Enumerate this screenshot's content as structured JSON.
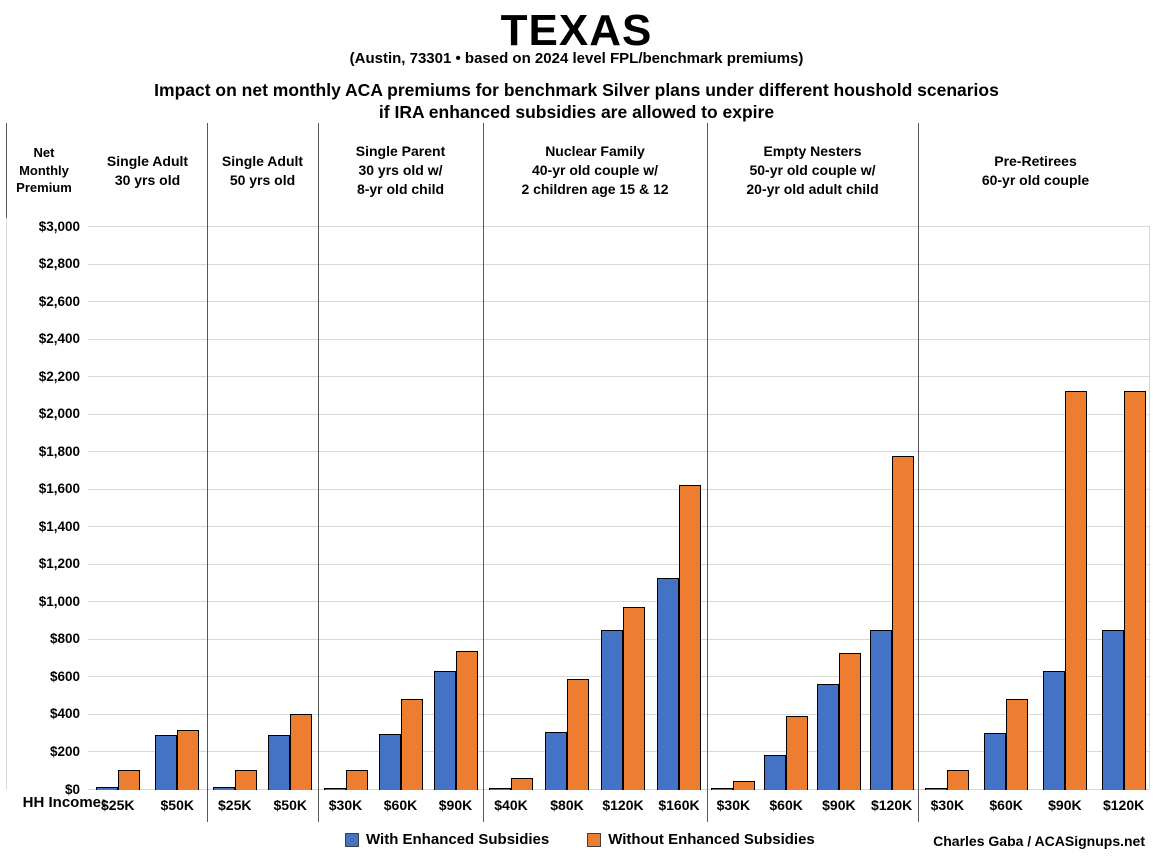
{
  "header": {
    "title": "TEXAS",
    "subtitle": "(Austin, 73301 • based on 2024 level FPL/benchmark premiums)",
    "headline": "Impact on net monthly ACA premiums for benchmark Silver plans under different houshold scenarios\nif IRA enhanced subsidies are allowed to expire"
  },
  "axis": {
    "y_title": "Net\nMonthly\nPremium",
    "x_title": "HH Income:"
  },
  "legend": {
    "with_label": "With Enhanced Subsidies",
    "without_label": "Without Enhanced Subsidies"
  },
  "credit": "Charles Gaba / ACASignups.net",
  "colors": {
    "with_enhanced": "#4472C4",
    "without_enhanced": "#ED7D31",
    "bar_border": "#000000",
    "gridline": "#d9d9d9",
    "divider": "#595959"
  },
  "chart_data": {
    "type": "bar",
    "title": "Impact on net monthly ACA premiums for benchmark Silver plans under different houshold scenarios if IRA enhanced subsidies are allowed to expire",
    "location": "Austin, 73301",
    "ylabel": "Net Monthly Premium",
    "xlabel": "HH Income",
    "ylim": [
      0,
      3000
    ],
    "y_tick_step": 200,
    "grid": true,
    "legend_position": "bottom",
    "series_names": [
      "With Enhanced Subsidies",
      "Without Enhanced Subsidies"
    ],
    "groups": [
      {
        "label": "Single Adult\n30 yrs old",
        "incomes": [
          "$25K",
          "$50K"
        ],
        "with_enhanced": [
          15,
          295
        ],
        "without_enhanced": [
          105,
          320
        ]
      },
      {
        "label": "Single Adult\n50 yrs old",
        "incomes": [
          "$25K",
          "$50K"
        ],
        "with_enhanced": [
          15,
          295
        ],
        "without_enhanced": [
          105,
          405
        ]
      },
      {
        "label": "Single Parent\n30 yrs old w/\n8-yr old child",
        "incomes": [
          "$30K",
          "$60K",
          "$90K"
        ],
        "with_enhanced": [
          5,
          300,
          635
        ],
        "without_enhanced": [
          105,
          485,
          740
        ]
      },
      {
        "label": "Nuclear Family\n40-yr old couple w/\n2 children age 15 & 12",
        "incomes": [
          "$40K",
          "$80K",
          "$120K",
          "$160K"
        ],
        "with_enhanced": [
          0,
          310,
          850,
          1130
        ],
        "without_enhanced": [
          65,
          590,
          975,
          1625
        ]
      },
      {
        "label": "Empty Nesters\n50-yr old couple w/\n20-yr old adult child",
        "incomes": [
          "$30K",
          "$60K",
          "$90K",
          "$120K"
        ],
        "with_enhanced": [
          0,
          185,
          565,
          850
        ],
        "without_enhanced": [
          50,
          395,
          730,
          1780
        ]
      },
      {
        "label": "Pre-Retirees\n60-yr old couple",
        "incomes": [
          "$30K",
          "$60K",
          "$90K",
          "$120K"
        ],
        "with_enhanced": [
          10,
          305,
          635,
          850
        ],
        "without_enhanced": [
          105,
          485,
          2125,
          2125
        ]
      }
    ]
  }
}
